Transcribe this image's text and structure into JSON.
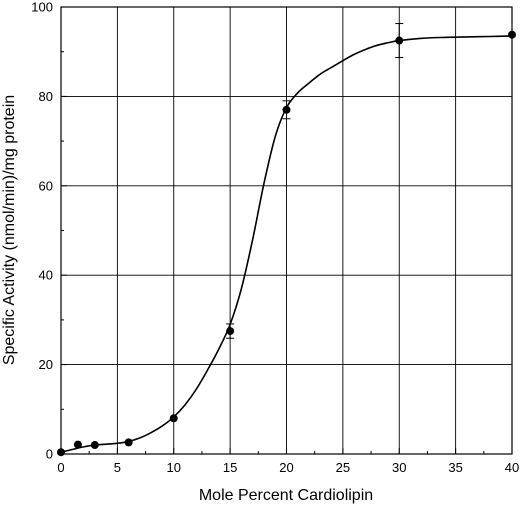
{
  "chart_data": {
    "type": "scatter",
    "title": "",
    "xlabel": "Mole Percent Cardiolipin",
    "ylabel": "Specific Activity (nmol/min)/mg protein",
    "xlim": [
      0,
      40
    ],
    "ylim": [
      0,
      100
    ],
    "x_ticks": [
      0,
      5,
      10,
      15,
      20,
      25,
      30,
      35,
      40
    ],
    "y_ticks": [
      0,
      20,
      40,
      60,
      80,
      100
    ],
    "grid": true,
    "legend": "none",
    "series": [
      {
        "points": [
          {
            "x": 0,
            "y": 0.4,
            "err": 0
          },
          {
            "x": 1.5,
            "y": 2.1,
            "err": 0
          },
          {
            "x": 3,
            "y": 2.0,
            "err": 0
          },
          {
            "x": 6,
            "y": 2.6,
            "err": 0
          },
          {
            "x": 10,
            "y": 8.0,
            "err": 0
          },
          {
            "x": 15,
            "y": 27.5,
            "err": 1.6
          },
          {
            "x": 20,
            "y": 77.0,
            "err": 2.0
          },
          {
            "x": 30,
            "y": 92.5,
            "err": 3.8
          },
          {
            "x": 40,
            "y": 93.8,
            "err": 0
          }
        ]
      }
    ],
    "fit_curve": {
      "x": [
        0,
        1,
        2,
        3,
        4,
        5,
        6,
        7,
        8,
        9,
        10,
        11,
        12,
        13,
        14,
        15,
        16,
        17,
        18,
        19,
        20,
        21,
        22,
        23,
        24,
        25,
        26,
        27,
        28,
        29,
        30,
        32,
        34,
        36,
        38,
        40
      ],
      "y": [
        0.4,
        1.0,
        1.6,
        2.0,
        2.2,
        2.4,
        2.8,
        3.6,
        4.8,
        6.3,
        8.3,
        11.0,
        14.5,
        18.8,
        23.5,
        29.0,
        37.0,
        48.0,
        60.5,
        71.0,
        77.5,
        80.8,
        83.0,
        85.0,
        86.5,
        88.0,
        89.4,
        90.5,
        91.4,
        92.0,
        92.5,
        93.0,
        93.2,
        93.3,
        93.4,
        93.5
      ]
    },
    "colors": {
      "marker": "#000000",
      "line": "#000000",
      "grid": "#000000"
    }
  }
}
